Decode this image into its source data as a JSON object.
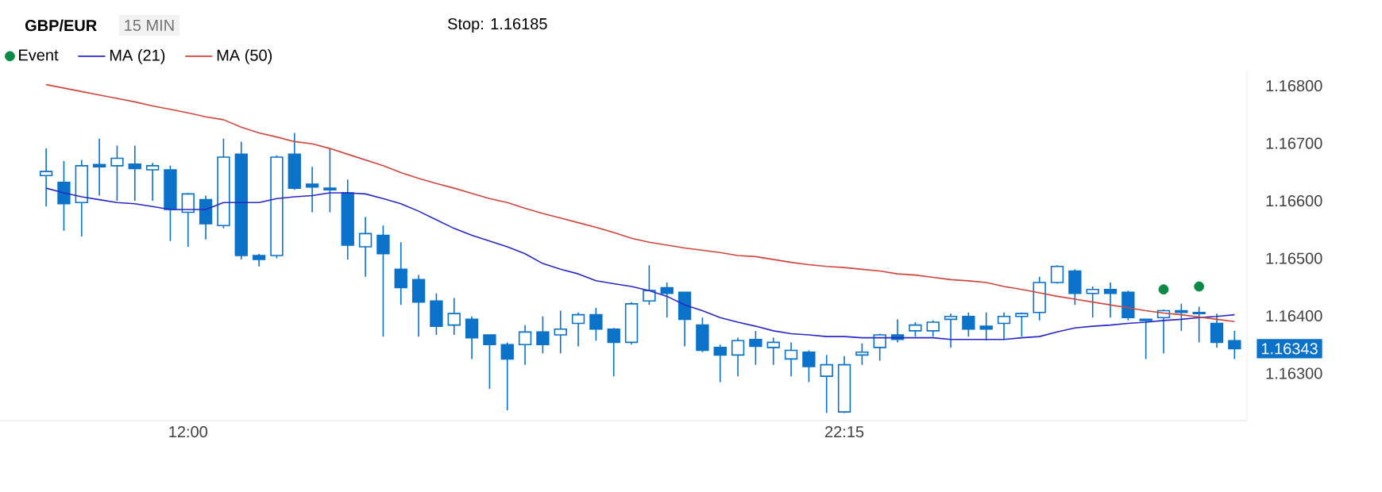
{
  "chart_data": {
    "type": "candlestick",
    "title": "GBP/EUR",
    "subtitle": "15 MIN",
    "annotations": [
      "Stop: 1.16185",
      "1.16343"
    ],
    "categories": [
      null,
      null,
      null,
      null,
      null,
      null,
      null,
      null,
      "12:00",
      null,
      null,
      null,
      null,
      null,
      null,
      null,
      null,
      null,
      null,
      null,
      null,
      null,
      null,
      null,
      null,
      null,
      null,
      null,
      null,
      null,
      null,
      null,
      null,
      null,
      null,
      null,
      null,
      null,
      null,
      null,
      null,
      null,
      null,
      null,
      null,
      "22:15",
      null,
      null,
      null,
      null,
      null,
      null,
      null,
      null,
      null,
      null,
      null,
      null,
      null,
      null,
      null,
      null,
      null,
      null,
      null,
      null,
      null,
      null
    ],
    "ohlc": [
      [
        1.16644,
        1.16691,
        1.1659,
        1.16651
      ],
      [
        1.16632,
        1.16669,
        1.16548,
        1.16595
      ],
      [
        1.16597,
        1.16671,
        1.16538,
        1.16661
      ],
      [
        1.16663,
        1.16708,
        1.16609,
        1.16659
      ],
      [
        1.16661,
        1.16696,
        1.166,
        1.16674
      ],
      [
        1.16664,
        1.16696,
        1.166,
        1.16656
      ],
      [
        1.16654,
        1.16666,
        1.166,
        1.16661
      ],
      [
        1.16654,
        1.16661,
        1.1653,
        1.16585
      ],
      [
        1.1658,
        1.16614,
        1.1652,
        1.16612
      ],
      [
        1.16602,
        1.16609,
        1.16533,
        1.1656
      ],
      [
        1.16557,
        1.16708,
        1.16552,
        1.16676
      ],
      [
        1.16681,
        1.16703,
        1.16498,
        1.16505
      ],
      [
        1.16505,
        1.16508,
        1.16486,
        1.16498
      ],
      [
        1.16505,
        1.16679,
        1.165,
        1.16676
      ],
      [
        1.16681,
        1.16718,
        1.16619,
        1.16622
      ],
      [
        1.16629,
        1.16659,
        1.1658,
        1.16624
      ],
      [
        1.16622,
        1.16691,
        1.1658,
        1.16619
      ],
      [
        1.16614,
        1.16637,
        1.16498,
        1.16523
      ],
      [
        1.1652,
        1.16572,
        1.16468,
        1.16543
      ],
      [
        1.1654,
        1.16557,
        1.16364,
        1.16508
      ],
      [
        1.16481,
        1.16528,
        1.16419,
        1.16449
      ],
      [
        1.16463,
        1.16471,
        1.16364,
        1.16424
      ],
      [
        1.16426,
        1.16439,
        1.16367,
        1.16382
      ],
      [
        1.16384,
        1.16431,
        1.16367,
        1.16404
      ],
      [
        1.16394,
        1.16399,
        1.16325,
        1.16362
      ],
      [
        1.16367,
        1.16367,
        1.16273,
        1.1635
      ],
      [
        1.1635,
        1.16354,
        1.16236,
        1.16325
      ],
      [
        1.1635,
        1.16384,
        1.16315,
        1.16372
      ],
      [
        1.16372,
        1.16399,
        1.16335,
        1.1635
      ],
      [
        1.16367,
        1.16409,
        1.16335,
        1.16377
      ],
      [
        1.16387,
        1.16406,
        1.16347,
        1.16402
      ],
      [
        1.16402,
        1.16414,
        1.16357,
        1.16377
      ],
      [
        1.16377,
        1.16379,
        1.16295,
        1.16354
      ],
      [
        1.16354,
        1.16424,
        1.1635,
        1.16421
      ],
      [
        1.16426,
        1.16488,
        1.16419,
        1.16444
      ],
      [
        1.16449,
        1.16458,
        1.16397,
        1.16439
      ],
      [
        1.16441,
        1.16441,
        1.16347,
        1.16394
      ],
      [
        1.16384,
        1.16397,
        1.16337,
        1.1634
      ],
      [
        1.16345,
        1.1635,
        1.16285,
        1.16332
      ],
      [
        1.16332,
        1.16362,
        1.16295,
        1.16357
      ],
      [
        1.16359,
        1.16374,
        1.16315,
        1.16347
      ],
      [
        1.16345,
        1.16362,
        1.16315,
        1.16354
      ],
      [
        1.16325,
        1.16354,
        1.16295,
        1.1634
      ],
      [
        1.16337,
        1.1634,
        1.16285,
        1.16312
      ],
      [
        1.16295,
        1.16332,
        1.16231,
        1.16315
      ],
      [
        1.16233,
        1.1633,
        1.16231,
        1.16315
      ],
      [
        1.16332,
        1.16352,
        1.16315,
        1.16337
      ],
      [
        1.16345,
        1.16369,
        1.16322,
        1.16367
      ],
      [
        1.16367,
        1.16394,
        1.16354,
        1.16359
      ],
      [
        1.16374,
        1.16389,
        1.16364,
        1.16384
      ],
      [
        1.16374,
        1.16392,
        1.16364,
        1.16389
      ],
      [
        1.16394,
        1.16404,
        1.16345,
        1.16399
      ],
      [
        1.16399,
        1.16406,
        1.16364,
        1.16377
      ],
      [
        1.16382,
        1.16406,
        1.16357,
        1.16377
      ],
      [
        1.16387,
        1.16406,
        1.16359,
        1.16399
      ],
      [
        1.16399,
        1.16406,
        1.16364,
        1.16404
      ],
      [
        1.16406,
        1.16468,
        1.16392,
        1.16458
      ],
      [
        1.16458,
        1.16488,
        1.16456,
        1.16486
      ],
      [
        1.16478,
        1.16481,
        1.16419,
        1.16439
      ],
      [
        1.16439,
        1.16451,
        1.16397,
        1.16446
      ],
      [
        1.16446,
        1.16458,
        1.16397,
        1.16439
      ],
      [
        1.16441,
        1.16444,
        1.16392,
        1.16397
      ],
      [
        1.16392,
        1.16394,
        1.16325,
        1.16394
      ],
      [
        1.16397,
        1.16411,
        1.16335,
        1.16409
      ],
      [
        1.16409,
        1.16421,
        1.16374,
        1.16406
      ],
      [
        1.16406,
        1.16416,
        1.16354,
        1.16404
      ],
      [
        1.16387,
        1.16404,
        1.16345,
        1.16354
      ],
      [
        1.16357,
        1.16374,
        1.16325,
        1.16343
      ]
    ],
    "series": [
      {
        "name": "Event",
        "type": "scatter",
        "marker": "circle",
        "color": "#0b8a45",
        "values": [
          null,
          null,
          null,
          null,
          null,
          null,
          null,
          null,
          null,
          null,
          null,
          null,
          null,
          null,
          null,
          null,
          null,
          null,
          null,
          null,
          null,
          null,
          null,
          null,
          null,
          null,
          null,
          null,
          null,
          null,
          null,
          null,
          null,
          null,
          null,
          null,
          null,
          null,
          null,
          null,
          null,
          null,
          null,
          null,
          null,
          null,
          null,
          null,
          null,
          null,
          null,
          null,
          null,
          null,
          null,
          null,
          null,
          null,
          null,
          null,
          null,
          null,
          null,
          1.16446,
          null,
          1.16451,
          null,
          null
        ]
      },
      {
        "name": "MA (21)",
        "type": "line",
        "color": "#2828c8",
        "values": [
          1.16622,
          1.16614,
          1.16607,
          1.16602,
          1.16597,
          1.16595,
          1.1659,
          1.16585,
          1.16585,
          1.16585,
          1.16597,
          1.16597,
          1.16597,
          1.16604,
          1.16607,
          1.16609,
          1.16614,
          1.16614,
          1.16612,
          1.16604,
          1.16595,
          1.16582,
          1.16567,
          1.16552,
          1.1654,
          1.1653,
          1.1652,
          1.16508,
          1.16491,
          1.16481,
          1.16473,
          1.16461,
          1.16456,
          1.16451,
          1.16444,
          1.16434,
          1.16419,
          1.16409,
          1.16397,
          1.16389,
          1.16382,
          1.16374,
          1.16369,
          1.16367,
          1.16364,
          1.16364,
          1.16362,
          1.16362,
          1.16362,
          1.16362,
          1.16362,
          1.16359,
          1.16359,
          1.16359,
          1.16359,
          1.16362,
          1.16364,
          1.16372,
          1.16379,
          1.16382,
          1.16384,
          1.16387,
          1.16389,
          1.16392,
          1.16394,
          1.16397,
          1.16399,
          1.16402
        ]
      },
      {
        "name": "MA (50)",
        "type": "line",
        "color": "#d0463c",
        "values": [
          1.16802,
          1.16796,
          1.1679,
          1.16784,
          1.16778,
          1.16772,
          1.16765,
          1.16759,
          1.16753,
          1.16746,
          1.16741,
          1.16728,
          1.16718,
          1.16711,
          1.16703,
          1.16699,
          1.16691,
          1.16681,
          1.16671,
          1.16661,
          1.16649,
          1.16639,
          1.1663,
          1.16622,
          1.16613,
          1.16604,
          1.16597,
          1.16587,
          1.16578,
          1.1657,
          1.16562,
          1.16554,
          1.16545,
          1.16535,
          1.16528,
          1.16523,
          1.16518,
          1.16514,
          1.1651,
          1.16505,
          1.16503,
          1.16498,
          1.16493,
          1.16489,
          1.16486,
          1.16484,
          1.16481,
          1.16478,
          1.16473,
          1.16471,
          1.16467,
          1.16463,
          1.16461,
          1.16458,
          1.16451,
          1.16446,
          1.1644,
          1.16434,
          1.16429,
          1.16424,
          1.16419,
          1.16414,
          1.16409,
          1.16405,
          1.16402,
          1.16398,
          1.16394,
          1.1639
        ]
      }
    ],
    "ylim": [
      1.16218,
      1.16825
    ],
    "yticks": [
      {
        "value": 1.163,
        "label": "1.16300"
      },
      {
        "value": 1.164,
        "label": "1.16400"
      },
      {
        "value": 1.165,
        "label": "1.16500"
      },
      {
        "value": 1.166,
        "label": "1.16600"
      },
      {
        "value": 1.167,
        "label": "1.16700"
      },
      {
        "value": 1.168,
        "label": "1.16800"
      }
    ],
    "legend": "top left"
  }
}
